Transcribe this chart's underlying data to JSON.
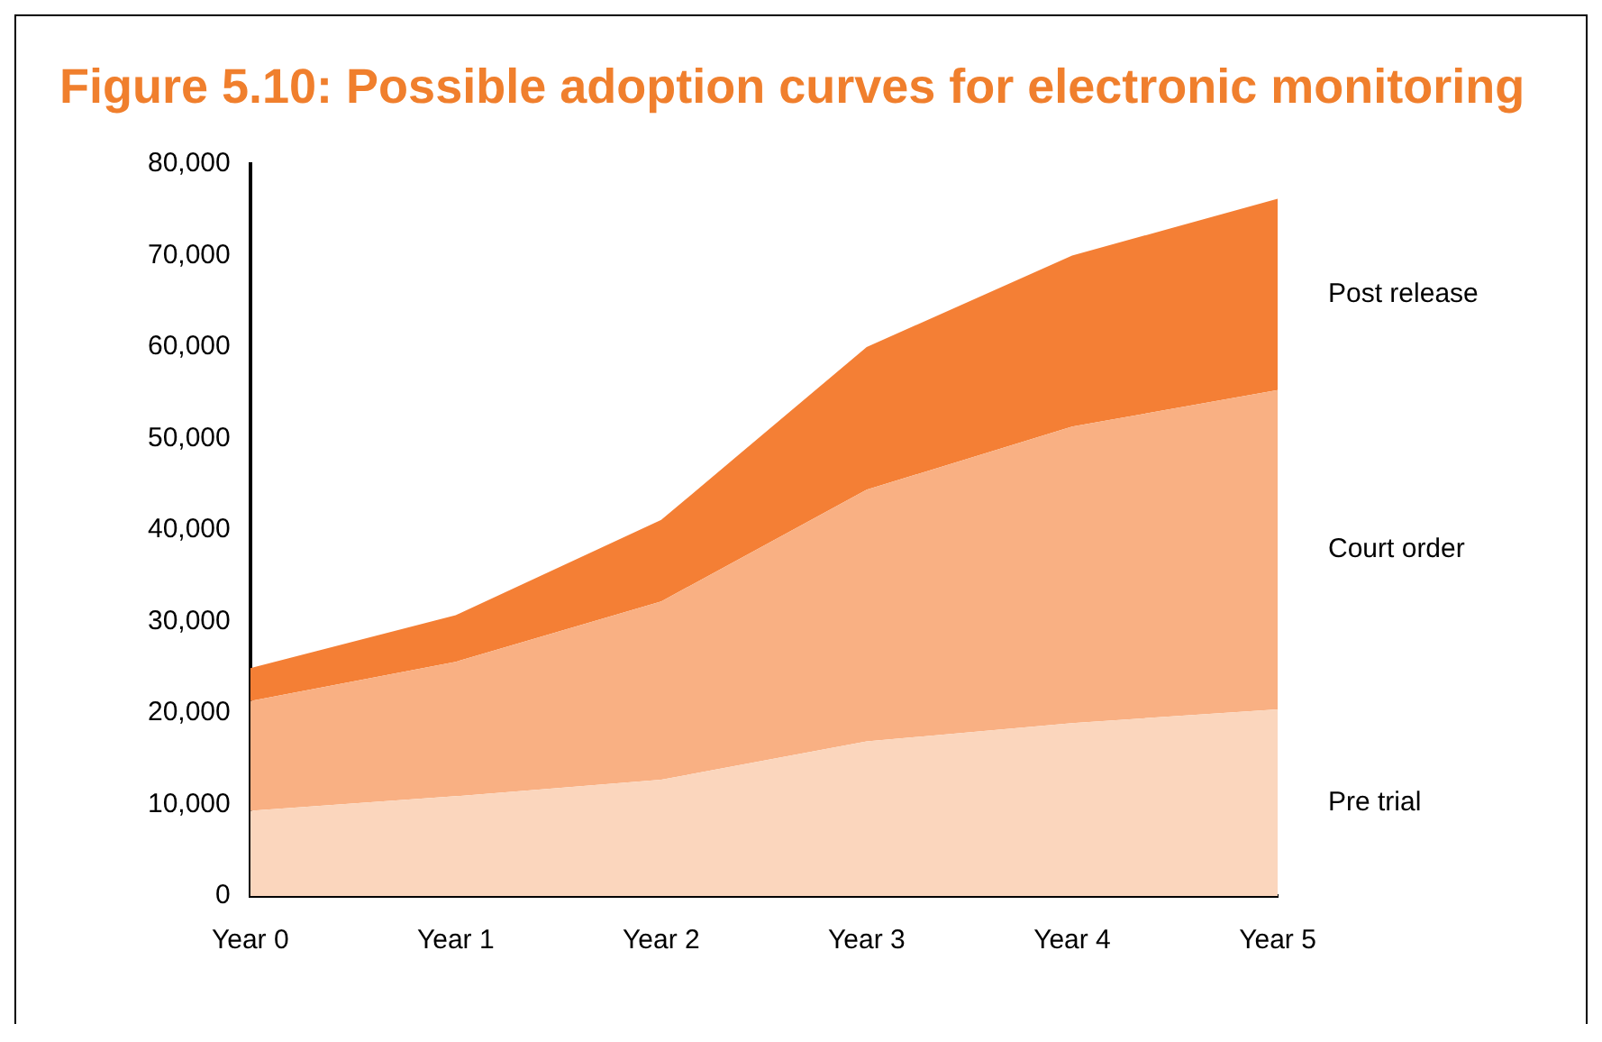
{
  "chart_data": {
    "type": "area",
    "title": "Figure 5.10: Possible adoption curves for electronic monitoring",
    "categories": [
      "Year 0",
      "Year 1",
      "Year 2",
      "Year 3",
      "Year 4",
      "Year 5"
    ],
    "series": [
      {
        "name": "Pre trial",
        "color": "#fbd6bd",
        "values": [
          9300,
          10900,
          12700,
          16900,
          18900,
          20400
        ]
      },
      {
        "name": "Court order",
        "color": "#f9b083",
        "values": [
          12000,
          14700,
          19500,
          27500,
          32400,
          34900
        ]
      },
      {
        "name": "Post release",
        "color": "#f47f35",
        "values": [
          3600,
          5100,
          8900,
          15600,
          18700,
          20900
        ]
      }
    ],
    "stacked": true,
    "ylim": [
      0,
      80000
    ],
    "yticks": [
      {
        "value": 0,
        "label": "0"
      },
      {
        "value": 10000,
        "label": "10,000"
      },
      {
        "value": 20000,
        "label": "20,000"
      },
      {
        "value": 30000,
        "label": "30,000"
      },
      {
        "value": 40000,
        "label": "40,000"
      },
      {
        "value": 50000,
        "label": "50,000"
      },
      {
        "value": 60000,
        "label": "60,000"
      },
      {
        "value": 70000,
        "label": "70,000"
      },
      {
        "value": 80000,
        "label": "80,000"
      }
    ],
    "grid": false,
    "legend": false
  }
}
